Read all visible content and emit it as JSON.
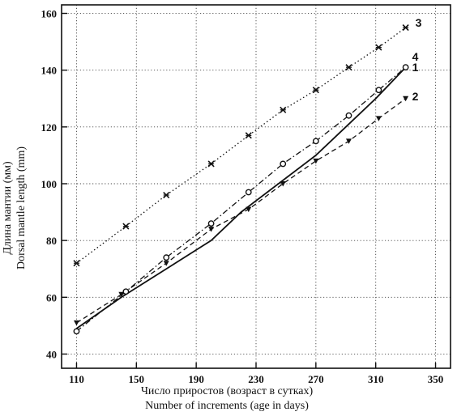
{
  "chart_data": {
    "type": "line",
    "xlabel_ru": "Число приростов (возраст в сутках)",
    "xlabel_en": "Number of increments (age in days)",
    "ylabel_ru": "Длина мантии  (мм)",
    "ylabel_en": "Dorsal mantle length  (mm)",
    "xlim": [
      100,
      360
    ],
    "ylim": [
      35,
      163
    ],
    "xticks": [
      110,
      150,
      190,
      230,
      270,
      310,
      350
    ],
    "yticks": [
      40,
      60,
      80,
      100,
      120,
      140,
      160
    ],
    "grid": true,
    "series": [
      {
        "name": "1",
        "line": "solid",
        "marker": "",
        "x": [
          110,
          140,
          170,
          200,
          220,
          250,
          270,
          290,
          310,
          330
        ],
        "y": [
          49,
          60,
          70,
          80,
          90,
          102,
          110,
          120,
          130,
          141
        ]
      },
      {
        "name": "2",
        "line": "dashed",
        "marker": "v",
        "x": [
          110,
          140,
          170,
          200,
          225,
          248,
          270,
          292,
          312,
          330
        ],
        "y": [
          51,
          61,
          72,
          84,
          91,
          100,
          108,
          115,
          123,
          130
        ]
      },
      {
        "name": "3",
        "line": "dotted",
        "marker": "x",
        "x": [
          110,
          143,
          170,
          200,
          225,
          248,
          270,
          292,
          312,
          330
        ],
        "y": [
          72,
          85,
          96,
          107,
          117,
          126,
          133,
          141,
          148,
          155
        ]
      },
      {
        "name": "4",
        "line": "dashdot",
        "marker": "o",
        "x": [
          110,
          143,
          170,
          200,
          225,
          248,
          270,
          292,
          312,
          330
        ],
        "y": [
          48,
          62,
          74,
          86,
          97,
          107,
          115,
          124,
          133,
          141
        ]
      }
    ]
  }
}
